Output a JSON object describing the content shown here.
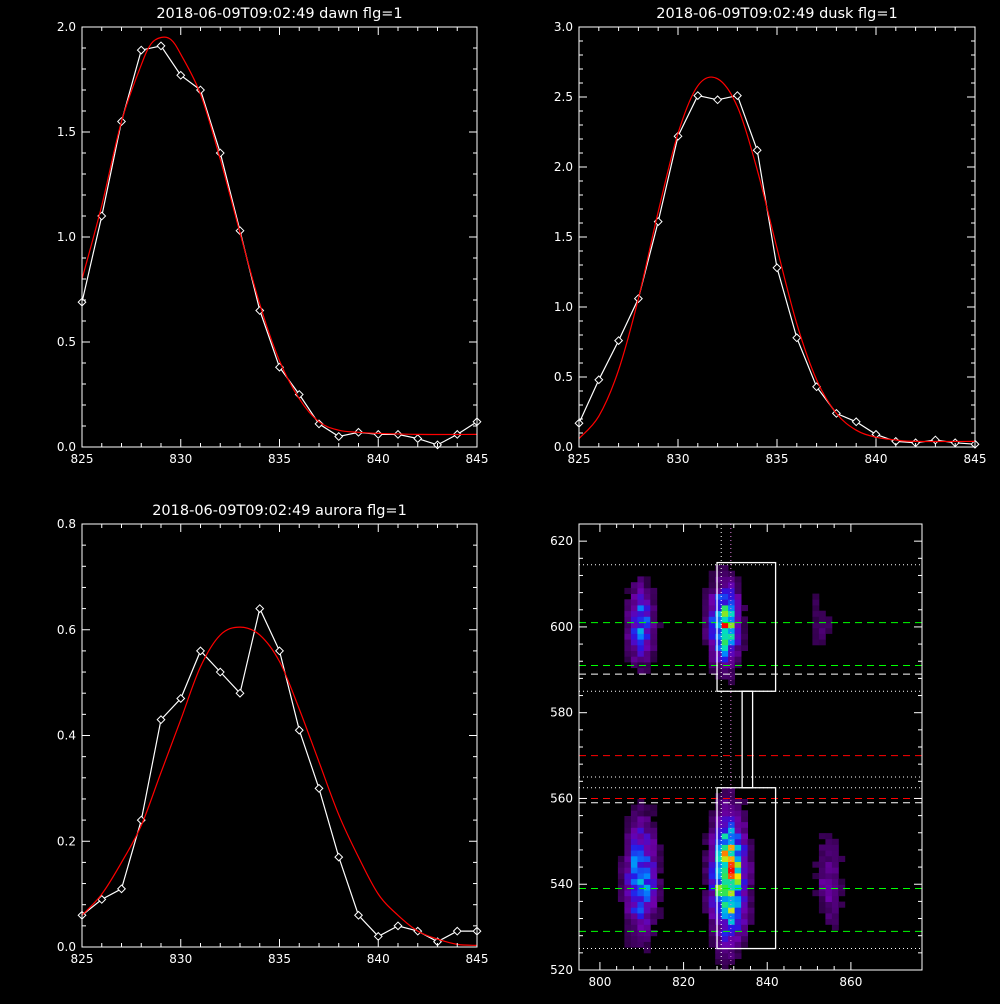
{
  "colors": {
    "background": "#000000",
    "axes": "#ffffff",
    "observed": "#ffffff",
    "fit": "#ff0000"
  },
  "chart_data": [
    {
      "type": "line",
      "title": "2018-06-09T09:02:49 dawn flg=1",
      "xlim": [
        825,
        845
      ],
      "ylim": [
        0,
        2.0
      ],
      "xticks": [
        "825",
        "830",
        "835",
        "840",
        "845"
      ],
      "yticks": [
        "0.0",
        "0.5",
        "1.0",
        "1.5",
        "2.0"
      ],
      "series": [
        {
          "marker": "diamond",
          "color": "#ffffff",
          "x": [
            825,
            826,
            827,
            828,
            829,
            830,
            831,
            832,
            833,
            834,
            835,
            836,
            837,
            838,
            839,
            840,
            841,
            842,
            843,
            844,
            845
          ],
          "y": [
            0.69,
            1.1,
            1.55,
            1.89,
            1.91,
            1.77,
            1.7,
            1.4,
            1.03,
            0.65,
            0.38,
            0.25,
            0.11,
            0.05,
            0.07,
            0.06,
            0.06,
            0.04,
            0.01,
            0.06,
            0.12
          ]
        },
        {
          "marker": "none",
          "color": "#ff0000",
          "x": [
            825,
            826,
            827,
            828,
            828.5,
            829,
            829.5,
            830,
            831,
            832,
            833,
            834,
            835,
            836,
            837,
            838,
            839,
            840,
            842,
            845
          ],
          "y": [
            0.8,
            1.15,
            1.55,
            1.82,
            1.92,
            1.95,
            1.94,
            1.87,
            1.68,
            1.37,
            1.02,
            0.68,
            0.41,
            0.23,
            0.12,
            0.08,
            0.07,
            0.065,
            0.06,
            0.06
          ]
        }
      ]
    },
    {
      "type": "line",
      "title": "2018-06-09T09:02:49 dusk flg=1",
      "xlim": [
        825,
        845
      ],
      "ylim": [
        0,
        3.0
      ],
      "xticks": [
        "825",
        "830",
        "835",
        "840",
        "845"
      ],
      "yticks": [
        "0.0",
        "0.5",
        "1.0",
        "1.5",
        "2.0",
        "2.5",
        "3.0"
      ],
      "series": [
        {
          "marker": "diamond",
          "color": "#ffffff",
          "x": [
            825,
            826,
            827,
            828,
            829,
            830,
            831,
            832,
            833,
            834,
            835,
            836,
            837,
            838,
            839,
            840,
            841,
            842,
            843,
            844,
            845
          ],
          "y": [
            0.17,
            0.48,
            0.76,
            1.06,
            1.61,
            2.22,
            2.51,
            2.48,
            2.51,
            2.12,
            1.28,
            0.78,
            0.43,
            0.24,
            0.18,
            0.09,
            0.04,
            0.03,
            0.05,
            0.03,
            0.02
          ]
        },
        {
          "marker": "none",
          "color": "#ff0000",
          "x": [
            825,
            826,
            827,
            828,
            829,
            830,
            831,
            832,
            833,
            834,
            835,
            836,
            837,
            838,
            839,
            840,
            841,
            842,
            845
          ],
          "y": [
            0.06,
            0.22,
            0.55,
            1.06,
            1.68,
            2.24,
            2.58,
            2.63,
            2.43,
            1.98,
            1.42,
            0.88,
            0.48,
            0.24,
            0.12,
            0.07,
            0.05,
            0.04,
            0.04
          ]
        }
      ]
    },
    {
      "type": "line",
      "title": "2018-06-09T09:02:49 aurora flg=1",
      "xlim": [
        825,
        845
      ],
      "ylim": [
        0,
        0.8
      ],
      "xticks": [
        "825",
        "830",
        "835",
        "840",
        "845"
      ],
      "yticks": [
        "0.0",
        "0.2",
        "0.4",
        "0.6",
        "0.8"
      ],
      "series": [
        {
          "marker": "diamond",
          "color": "#ffffff",
          "x": [
            825,
            826,
            827,
            828,
            829,
            830,
            831,
            832,
            833,
            834,
            835,
            836,
            837,
            838,
            839,
            840,
            841,
            842,
            843,
            844,
            845
          ],
          "y": [
            0.06,
            0.09,
            0.11,
            0.24,
            0.43,
            0.47,
            0.56,
            0.52,
            0.48,
            0.64,
            0.56,
            0.41,
            0.3,
            0.17,
            0.06,
            0.02,
            0.04,
            0.03,
            0.01,
            0.03,
            0.03
          ]
        },
        {
          "marker": "none",
          "color": "#ff0000",
          "x": [
            825,
            826,
            827,
            828,
            829,
            830,
            831,
            832,
            833,
            834,
            835,
            836,
            837,
            838,
            839,
            840,
            841,
            842,
            843,
            844,
            845
          ],
          "y": [
            0.06,
            0.1,
            0.16,
            0.23,
            0.33,
            0.43,
            0.53,
            0.59,
            0.605,
            0.59,
            0.54,
            0.45,
            0.35,
            0.25,
            0.17,
            0.1,
            0.06,
            0.03,
            0.015,
            0.005,
            0.003
          ]
        }
      ]
    },
    {
      "type": "heatmap",
      "title": "",
      "xlim": [
        795,
        877
      ],
      "ylim": [
        520,
        624
      ],
      "xticks": [
        "800",
        "820",
        "840",
        "860"
      ],
      "yticks": [
        "520",
        "540",
        "560",
        "580",
        "600",
        "620"
      ],
      "blobs": [
        {
          "x": 809,
          "y": 600,
          "sx": 2.0,
          "sy": 5.5,
          "amp": 0.45
        },
        {
          "x": 829,
          "y": 600,
          "sx": 2.2,
          "sy": 5.5,
          "amp": 0.85
        },
        {
          "x": 809,
          "y": 541,
          "sx": 2.3,
          "sy": 8.0,
          "amp": 0.55
        },
        {
          "x": 830,
          "y": 541,
          "sx": 2.5,
          "sy": 8.5,
          "amp": 1.0
        },
        {
          "x": 854,
          "y": 540,
          "sx": 2.0,
          "sy": 7.0,
          "amp": 0.18
        },
        {
          "x": 852,
          "y": 600,
          "sx": 2.0,
          "sy": 6.0,
          "amp": 0.08
        }
      ],
      "vlines": [
        {
          "x": 829,
          "style": "dotted",
          "color": "#ffffff"
        },
        {
          "x": 831.3,
          "style": "dotted",
          "color": "#e080e0"
        }
      ],
      "hlines": [
        {
          "y": 614.5,
          "style": "dotted",
          "color": "#ffffff"
        },
        {
          "y": 601,
          "style": "dashed",
          "color": "#00ff00"
        },
        {
          "y": 591,
          "style": "dashed",
          "color": "#00ff00"
        },
        {
          "y": 589,
          "style": "dashed",
          "color": "#ffffff"
        },
        {
          "y": 585,
          "style": "dotted",
          "color": "#ffffff"
        },
        {
          "y": 570,
          "style": "dashed",
          "color": "#ff0000"
        },
        {
          "y": 565,
          "style": "dotted",
          "color": "#ffffff"
        },
        {
          "y": 562.5,
          "style": "dotted",
          "color": "#ffffff"
        },
        {
          "y": 560,
          "style": "dashed",
          "color": "#ff0000"
        },
        {
          "y": 559,
          "style": "dashed",
          "color": "#ffffff"
        },
        {
          "y": 539,
          "style": "dashed",
          "color": "#00ff00"
        },
        {
          "y": 529,
          "style": "dashed",
          "color": "#00ff00"
        },
        {
          "y": 525,
          "style": "dotted",
          "color": "#ffffff"
        }
      ],
      "boxes": [
        {
          "x0": 828,
          "x1": 842,
          "y0": 585,
          "y1": 615
        },
        {
          "x0": 828,
          "x1": 842,
          "y0": 525,
          "y1": 562.5
        },
        {
          "x0": 834,
          "x1": 836.5,
          "y0": 562.5,
          "y1": 585
        }
      ]
    }
  ]
}
